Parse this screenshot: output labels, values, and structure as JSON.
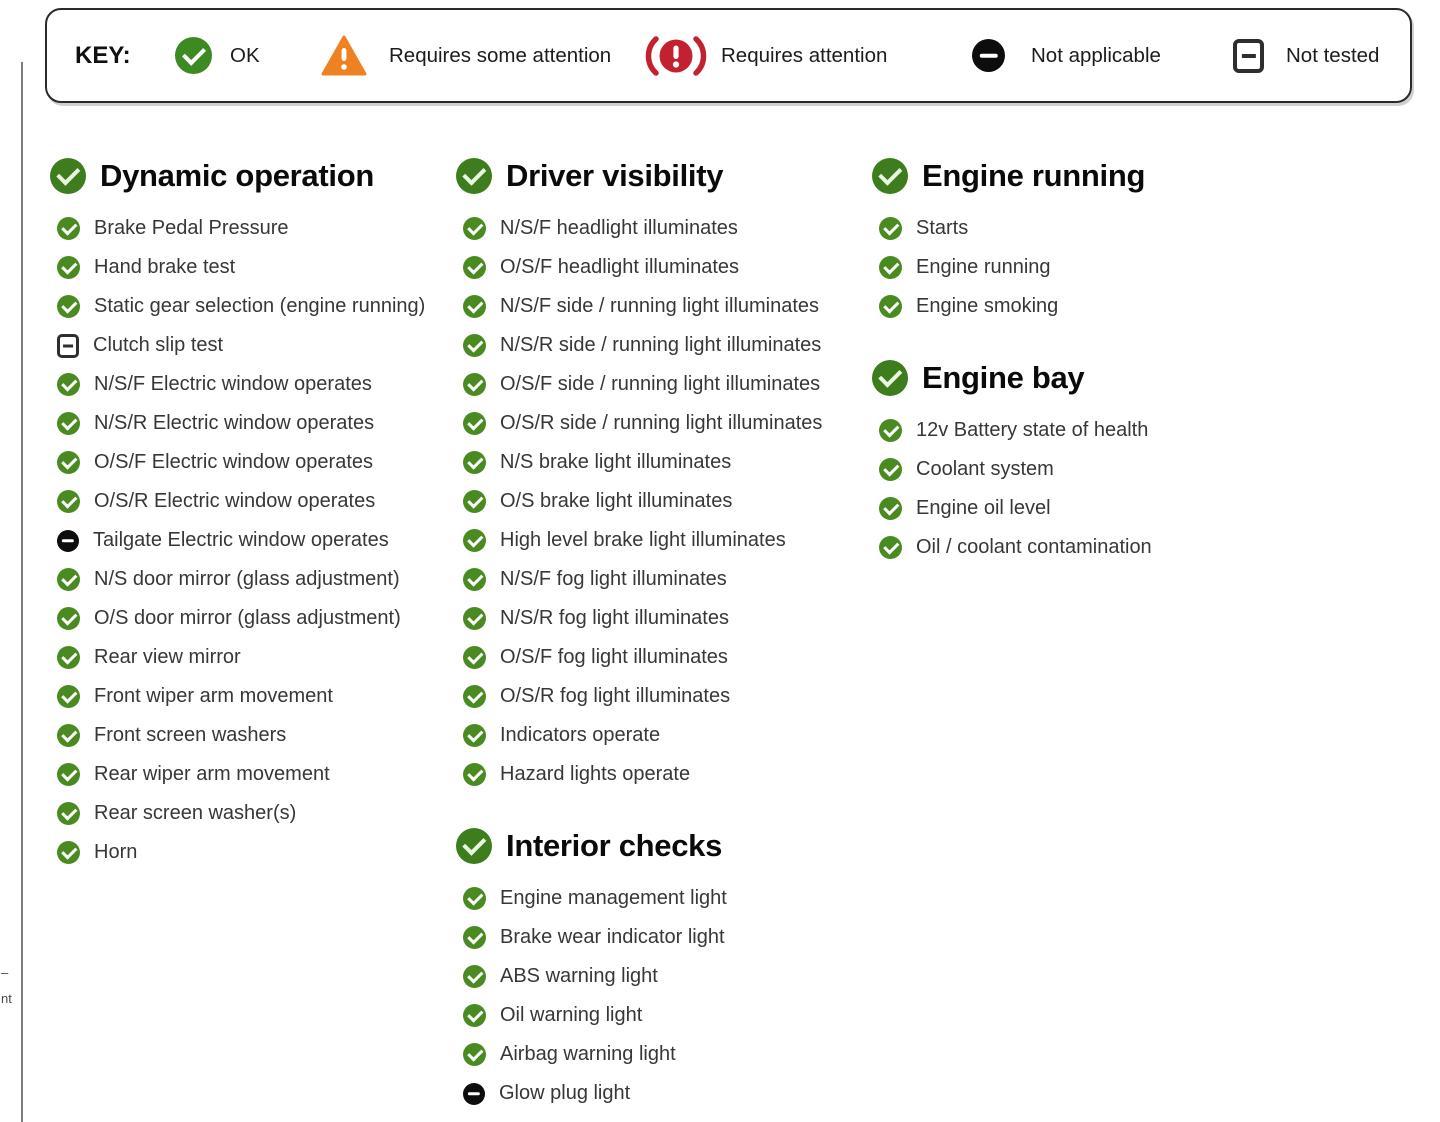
{
  "key": {
    "label": "KEY:",
    "items": [
      {
        "icon": "ok-icon",
        "label": "OK"
      },
      {
        "icon": "warning-triangle-icon",
        "label": "Requires some attention"
      },
      {
        "icon": "brake-warning-icon",
        "label": "Requires attention"
      },
      {
        "icon": "not-applicable-icon",
        "label": "Not applicable"
      },
      {
        "icon": "not-tested-icon",
        "label": "Not tested"
      }
    ]
  },
  "colors": {
    "ok_green": "#4a8b21",
    "heading_green": "#3d7d1e",
    "attention_orange": "#ee8222",
    "attention_red": "#c32030",
    "not_applicable_black": "#0d0d0d",
    "text": "#373737"
  },
  "columns": [
    {
      "sections": [
        {
          "title": "Dynamic operation",
          "status": "ok",
          "items": [
            {
              "label": "Brake Pedal Pressure",
              "status": "ok"
            },
            {
              "label": "Hand brake test",
              "status": "ok"
            },
            {
              "label": "Static gear selection (engine running)",
              "status": "ok"
            },
            {
              "label": "Clutch slip test",
              "status": "not_tested"
            },
            {
              "label": "N/S/F Electric window operates",
              "status": "ok"
            },
            {
              "label": "N/S/R Electric window operates",
              "status": "ok"
            },
            {
              "label": "O/S/F Electric window operates",
              "status": "ok"
            },
            {
              "label": "O/S/R Electric window operates",
              "status": "ok"
            },
            {
              "label": "Tailgate Electric window operates",
              "status": "na"
            },
            {
              "label": "N/S door mirror (glass adjustment)",
              "status": "ok"
            },
            {
              "label": "O/S door mirror (glass adjustment)",
              "status": "ok"
            },
            {
              "label": "Rear view mirror",
              "status": "ok"
            },
            {
              "label": "Front wiper arm movement",
              "status": "ok"
            },
            {
              "label": "Front screen washers",
              "status": "ok"
            },
            {
              "label": "Rear wiper arm movement",
              "status": "ok"
            },
            {
              "label": "Rear screen washer(s)",
              "status": "ok"
            },
            {
              "label": "Horn",
              "status": "ok"
            }
          ]
        }
      ]
    },
    {
      "sections": [
        {
          "title": "Driver visibility",
          "status": "ok",
          "items": [
            {
              "label": "N/S/F headlight illuminates",
              "status": "ok"
            },
            {
              "label": "O/S/F headlight illuminates",
              "status": "ok"
            },
            {
              "label": "N/S/F side / running light illuminates",
              "status": "ok"
            },
            {
              "label": "N/S/R side / running light illuminates",
              "status": "ok"
            },
            {
              "label": "O/S/F side / running light illuminates",
              "status": "ok"
            },
            {
              "label": "O/S/R side / running light illuminates",
              "status": "ok"
            },
            {
              "label": "N/S brake light illuminates",
              "status": "ok"
            },
            {
              "label": "O/S brake light illuminates",
              "status": "ok"
            },
            {
              "label": "High level brake light illuminates",
              "status": "ok"
            },
            {
              "label": "N/S/F fog light illuminates",
              "status": "ok"
            },
            {
              "label": "N/S/R fog light illuminates",
              "status": "ok"
            },
            {
              "label": "O/S/F fog light illuminates",
              "status": "ok"
            },
            {
              "label": "O/S/R fog light illuminates",
              "status": "ok"
            },
            {
              "label": "Indicators operate",
              "status": "ok"
            },
            {
              "label": "Hazard lights operate",
              "status": "ok"
            }
          ]
        },
        {
          "title": "Interior checks",
          "status": "ok",
          "items": [
            {
              "label": "Engine management light",
              "status": "ok"
            },
            {
              "label": "Brake wear indicator light",
              "status": "ok"
            },
            {
              "label": "ABS warning light",
              "status": "ok"
            },
            {
              "label": "Oil warning light",
              "status": "ok"
            },
            {
              "label": "Airbag warning light",
              "status": "ok"
            },
            {
              "label": "Glow plug light",
              "status": "na"
            }
          ]
        }
      ]
    },
    {
      "sections": [
        {
          "title": "Engine running",
          "status": "ok",
          "items": [
            {
              "label": "Starts",
              "status": "ok"
            },
            {
              "label": "Engine running",
              "status": "ok"
            },
            {
              "label": "Engine smoking",
              "status": "ok"
            }
          ]
        },
        {
          "title": "Engine bay",
          "status": "ok",
          "items": [
            {
              "label": "12v Battery state of health",
              "status": "ok"
            },
            {
              "label": "Coolant system",
              "status": "ok"
            },
            {
              "label": "Engine oil level",
              "status": "ok"
            },
            {
              "label": "Oil / coolant contamination",
              "status": "ok"
            }
          ]
        }
      ]
    }
  ],
  "edge_fragment": {
    "line1": "–",
    "line2": "nt"
  }
}
